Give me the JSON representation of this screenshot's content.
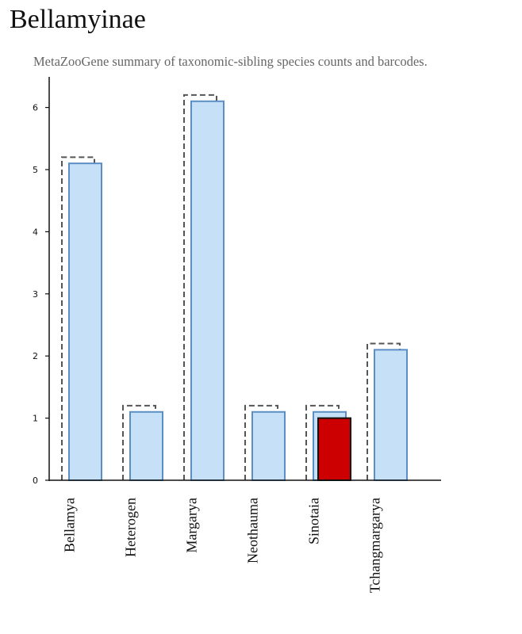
{
  "header": {
    "title": "Bellamyinae",
    "subtitle": "MetaZooGene summary of taxonomic-sibling species counts and barcodes."
  },
  "colors": {
    "bar_fill": "#c6e0f8",
    "bar_stroke": "#5b8ec4",
    "highlight_fill": "#cc0000",
    "highlight_stroke": "#111111",
    "outline_stroke": "#555555"
  },
  "chart_data": {
    "type": "bar",
    "title": "",
    "xlabel": "",
    "ylabel": "",
    "categories": [
      "Bellamya",
      "Heterogen",
      "Margarya",
      "Neothauma",
      "Sinotaia",
      "Tchangmargarya"
    ],
    "series": [
      {
        "values": [
          5.2,
          1.2,
          6.2,
          1.2,
          1.2,
          2.2
        ],
        "style": "dashed outline"
      },
      {
        "values": [
          5.1,
          1.1,
          6.1,
          1.1,
          1.1,
          2.1
        ],
        "style": "light blue bar"
      },
      {
        "values": [
          null,
          null,
          null,
          null,
          1.0,
          null
        ],
        "style": "red highlight bar"
      }
    ],
    "yticks": [
      0,
      1,
      2,
      3,
      4,
      5,
      6
    ],
    "ylim": [
      0,
      6.3
    ],
    "grid": false,
    "legend": "none"
  }
}
